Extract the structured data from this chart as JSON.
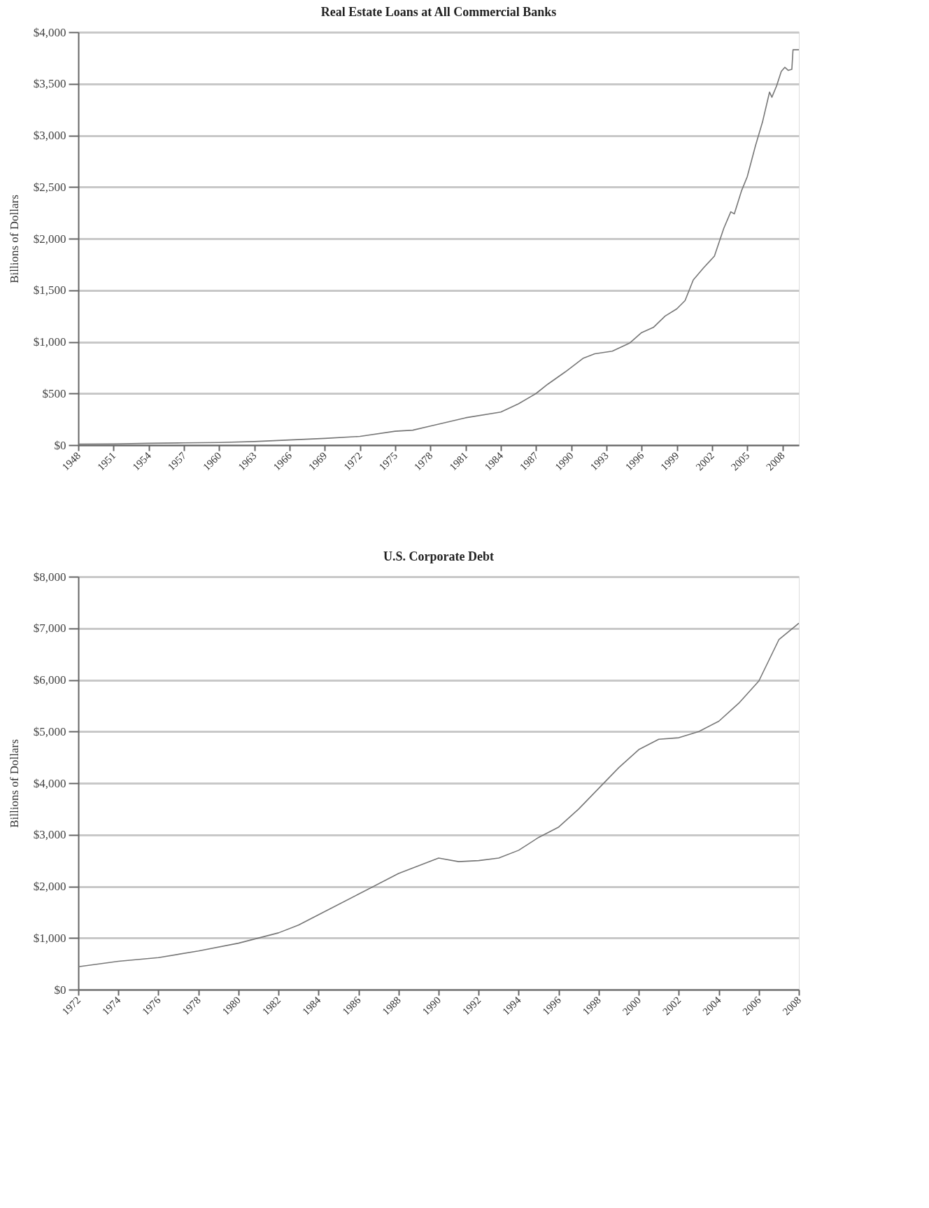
{
  "chart_data": [
    {
      "type": "line",
      "title": "Real Estate Loans at All Commercial Banks",
      "ylabel": "Billions of Dollars",
      "x": [
        1948,
        1951,
        1954,
        1957,
        1960,
        1963,
        1966,
        1969,
        1972,
        1975,
        1976.5,
        1978,
        1981,
        1984,
        1985.5,
        1987,
        1988,
        1989.5,
        1991,
        1992,
        1993.5,
        1995,
        1996,
        1997,
        1998,
        1999,
        1999.7,
        2000.4,
        2001.3,
        2002.2,
        2003,
        2003.6,
        2003.9,
        2004.5,
        2005,
        2005.7,
        2006.3,
        2006.9,
        2007.1,
        2007.5,
        2007.9,
        2008.2,
        2008.5,
        2008.8,
        2008.9,
        2009.4
      ],
      "series": [
        {
          "color": "#777777",
          "values": [
            10,
            12,
            18,
            22,
            25,
            35,
            50,
            65,
            85,
            135,
            145,
            185,
            265,
            320,
            400,
            500,
            590,
            710,
            840,
            885,
            910,
            990,
            1090,
            1140,
            1250,
            1320,
            1400,
            1600,
            1720,
            1830,
            2100,
            2260,
            2240,
            2460,
            2600,
            2900,
            3130,
            3420,
            3370,
            3480,
            3620,
            3660,
            3630,
            3640,
            3830,
            3830
          ]
        }
      ],
      "xlim": [
        1948,
        2009.4
      ],
      "xticks": [
        1948,
        1951,
        1954,
        1957,
        1960,
        1963,
        1966,
        1969,
        1972,
        1975,
        1978,
        1981,
        1984,
        1987,
        1990,
        1993,
        1996,
        1999,
        2002,
        2005,
        2008
      ],
      "ylim": [
        0,
        4000
      ],
      "yticks": [
        {
          "value": 0,
          "label": "$0"
        },
        {
          "value": 500,
          "label": "$500"
        },
        {
          "value": 1000,
          "label": "$1,000"
        },
        {
          "value": 1500,
          "label": "$1,500"
        },
        {
          "value": 2000,
          "label": "$2,000"
        },
        {
          "value": 2500,
          "label": "$2,500"
        },
        {
          "value": 3000,
          "label": "$3,000"
        },
        {
          "value": 3500,
          "label": "$3,500"
        },
        {
          "value": 4000,
          "label": "$4,000"
        }
      ],
      "grid": "y"
    },
    {
      "type": "line",
      "title": "U.S. Corporate Debt",
      "ylabel": "Billions of Dollars",
      "x": [
        1972,
        1974,
        1976,
        1978,
        1980,
        1982,
        1983,
        1984,
        1986,
        1988,
        1990,
        1991,
        1992,
        1993,
        1994,
        1995,
        1996,
        1997,
        1998,
        1999,
        2000,
        2001,
        2002,
        2003,
        2004,
        2005,
        2006,
        2007,
        2008
      ],
      "series": [
        {
          "color": "#777777",
          "values": [
            443,
            550,
            620,
            750,
            900,
            1100,
            1250,
            1450,
            1850,
            2250,
            2550,
            2480,
            2500,
            2550,
            2700,
            2950,
            3150,
            3500,
            3900,
            4300,
            4650,
            4850,
            4880,
            5000,
            5200,
            5550,
            5980,
            6780,
            7100
          ]
        }
      ],
      "xlim": [
        1972,
        2008
      ],
      "xticks": [
        1972,
        1974,
        1976,
        1978,
        1980,
        1982,
        1984,
        1986,
        1988,
        1990,
        1992,
        1994,
        1996,
        1998,
        2000,
        2002,
        2004,
        2006,
        2008
      ],
      "ylim": [
        0,
        8000
      ],
      "yticks": [
        {
          "value": 0,
          "label": "$0"
        },
        {
          "value": 1000,
          "label": "$1,000"
        },
        {
          "value": 2000,
          "label": "$2,000"
        },
        {
          "value": 3000,
          "label": "$3,000"
        },
        {
          "value": 4000,
          "label": "$4,000"
        },
        {
          "value": 5000,
          "label": "$5,000"
        },
        {
          "value": 6000,
          "label": "$6,000"
        },
        {
          "value": 7000,
          "label": "$7,000"
        },
        {
          "value": 8000,
          "label": "$8,000"
        }
      ],
      "grid": "y"
    }
  ]
}
